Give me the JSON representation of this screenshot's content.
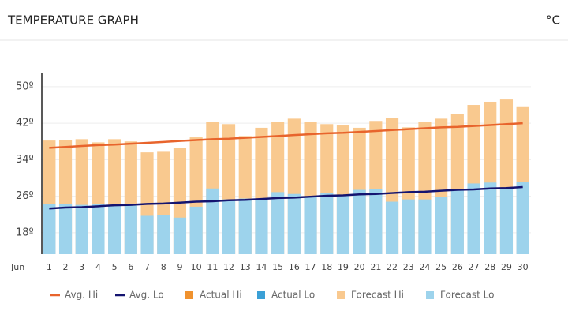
{
  "chart_data": {
    "type": "bar",
    "title": "TEMPERATURE GRAPH",
    "unit": "°C",
    "x_label": "Jun",
    "categories": [
      "1",
      "2",
      "3",
      "4",
      "5",
      "6",
      "7",
      "8",
      "9",
      "10",
      "11",
      "12",
      "13",
      "14",
      "15",
      "16",
      "17",
      "18",
      "19",
      "20",
      "21",
      "22",
      "23",
      "24",
      "25",
      "26",
      "27",
      "28",
      "29",
      "30"
    ],
    "series": [
      {
        "name": "Avg. Hi",
        "type": "line",
        "color": "#e8642c",
        "values": [
          36.6,
          36.8,
          37.0,
          37.2,
          37.3,
          37.5,
          37.7,
          37.9,
          38.1,
          38.3,
          38.5,
          38.6,
          38.8,
          39.0,
          39.2,
          39.4,
          39.6,
          39.8,
          39.9,
          40.1,
          40.3,
          40.5,
          40.7,
          40.9,
          41.1,
          41.2,
          41.4,
          41.6,
          41.8,
          42.0
        ]
      },
      {
        "name": "Avg. Lo",
        "type": "line",
        "color": "#141470",
        "values": [
          23.3,
          23.5,
          23.6,
          23.8,
          24.0,
          24.1,
          24.3,
          24.4,
          24.6,
          24.8,
          24.9,
          25.1,
          25.2,
          25.4,
          25.6,
          25.7,
          25.9,
          26.1,
          26.2,
          26.4,
          26.5,
          26.7,
          26.9,
          27.0,
          27.2,
          27.4,
          27.5,
          27.7,
          27.8,
          28.0
        ]
      },
      {
        "name": "Actual Hi",
        "type": "bar",
        "color": "#f0922e",
        "values": [
          null,
          null,
          null,
          null,
          null,
          null,
          null,
          null,
          null,
          null,
          null,
          null,
          null,
          null,
          null,
          null,
          null,
          null,
          null,
          null,
          null,
          null,
          null,
          null,
          null,
          null,
          null,
          null,
          null,
          null
        ]
      },
      {
        "name": "Actual Lo",
        "type": "bar",
        "color": "#3ba0d6",
        "values": [
          null,
          null,
          null,
          null,
          null,
          null,
          null,
          null,
          null,
          null,
          null,
          null,
          null,
          null,
          null,
          null,
          null,
          null,
          null,
          null,
          null,
          null,
          null,
          null,
          null,
          null,
          null,
          null,
          null,
          null
        ]
      },
      {
        "name": "Forecast Hi",
        "type": "bar",
        "color": "#f9c98f",
        "values": [
          38.2,
          38.3,
          38.5,
          37.8,
          38.5,
          38.0,
          35.6,
          35.9,
          36.6,
          38.9,
          42.2,
          41.8,
          39.2,
          41.0,
          42.3,
          43.0,
          42.2,
          41.8,
          41.5,
          41.0,
          42.5,
          43.2,
          41.1,
          42.2,
          43.0,
          44.1,
          46.0,
          46.7,
          47.2,
          45.7
        ]
      },
      {
        "name": "Forecast Lo",
        "type": "bar",
        "color": "#9dd3ec",
        "values": [
          24.3,
          24.3,
          24.1,
          24.3,
          24.1,
          24.1,
          21.7,
          21.8,
          21.3,
          23.7,
          27.7,
          25.3,
          25.5,
          25.5,
          26.9,
          26.5,
          25.8,
          26.7,
          26.2,
          27.4,
          27.6,
          24.8,
          25.3,
          25.3,
          25.8,
          27.4,
          28.8,
          29.0,
          27.9,
          29.1
        ]
      }
    ],
    "ylim": [
      13.3,
      53.1
    ],
    "yticks": [
      {
        "value": 18,
        "label": "18º"
      },
      {
        "value": 26,
        "label": "26º"
      },
      {
        "value": 34,
        "label": "34º"
      },
      {
        "value": 42,
        "label": "42º"
      },
      {
        "value": 50,
        "label": "50º"
      }
    ],
    "grid": true,
    "legend": "bottom"
  }
}
